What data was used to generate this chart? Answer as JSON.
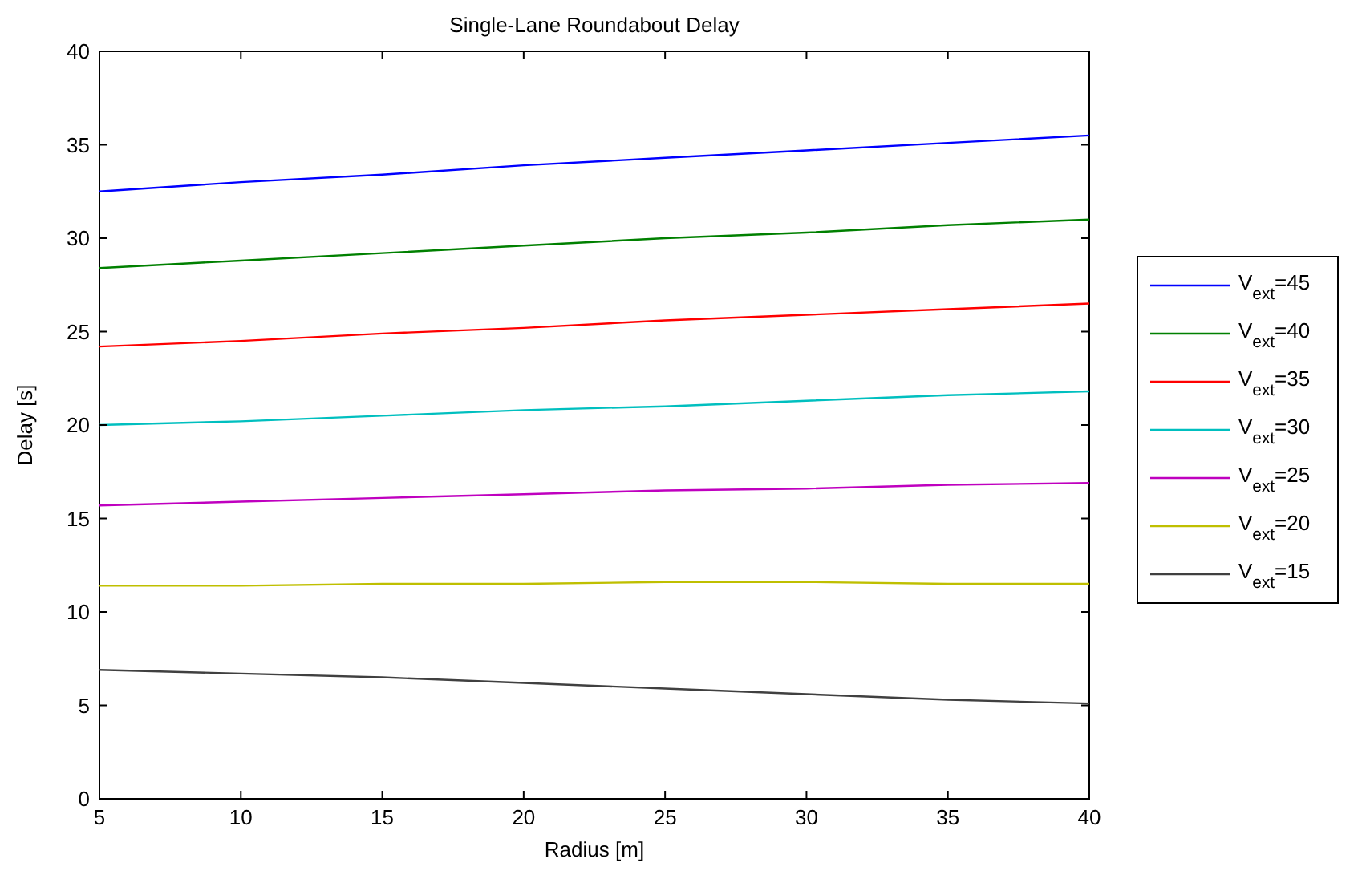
{
  "chart_data": {
    "type": "line",
    "title": "Single-Lane Roundabout Delay",
    "xlabel": "Radius [m]",
    "ylabel": "Delay [s]",
    "x": [
      5,
      10,
      15,
      20,
      25,
      30,
      35,
      40
    ],
    "xlim": [
      5,
      40
    ],
    "xticks": [
      5,
      10,
      15,
      20,
      25,
      30,
      35,
      40
    ],
    "ylim": [
      0,
      40
    ],
    "yticks": [
      0,
      5,
      10,
      15,
      20,
      25,
      30,
      35,
      40
    ],
    "grid": false,
    "legend": "right",
    "marker": "none",
    "line_style": "solid",
    "series": [
      {
        "name": "V$_{ext}$=45",
        "color": "#0000ff",
        "values": [
          32.5,
          33.0,
          33.4,
          33.9,
          34.3,
          34.7,
          35.1,
          35.5
        ]
      },
      {
        "name": "V$_{ext}$=40",
        "color": "#008000",
        "values": [
          28.4,
          28.8,
          29.2,
          29.6,
          30.0,
          30.3,
          30.7,
          31.0
        ]
      },
      {
        "name": "V$_{ext}$=35",
        "color": "#ff0000",
        "values": [
          24.2,
          24.5,
          24.9,
          25.2,
          25.6,
          25.9,
          26.2,
          26.5
        ]
      },
      {
        "name": "V$_{ext}$=30",
        "color": "#00bfbf",
        "values": [
          20.0,
          20.2,
          20.5,
          20.8,
          21.0,
          21.3,
          21.6,
          21.8
        ]
      },
      {
        "name": "V$_{ext}$=25",
        "color": "#bf00bf",
        "values": [
          15.7,
          15.9,
          16.1,
          16.3,
          16.5,
          16.6,
          16.8,
          16.9
        ]
      },
      {
        "name": "V$_{ext}$=20",
        "color": "#bfbf00",
        "values": [
          11.4,
          11.4,
          11.5,
          11.5,
          11.6,
          11.6,
          11.5,
          11.5
        ]
      },
      {
        "name": "V$_{ext}$=15",
        "color": "#404040",
        "values": [
          6.9,
          6.7,
          6.5,
          6.2,
          5.9,
          5.6,
          5.3,
          5.1
        ]
      }
    ]
  }
}
